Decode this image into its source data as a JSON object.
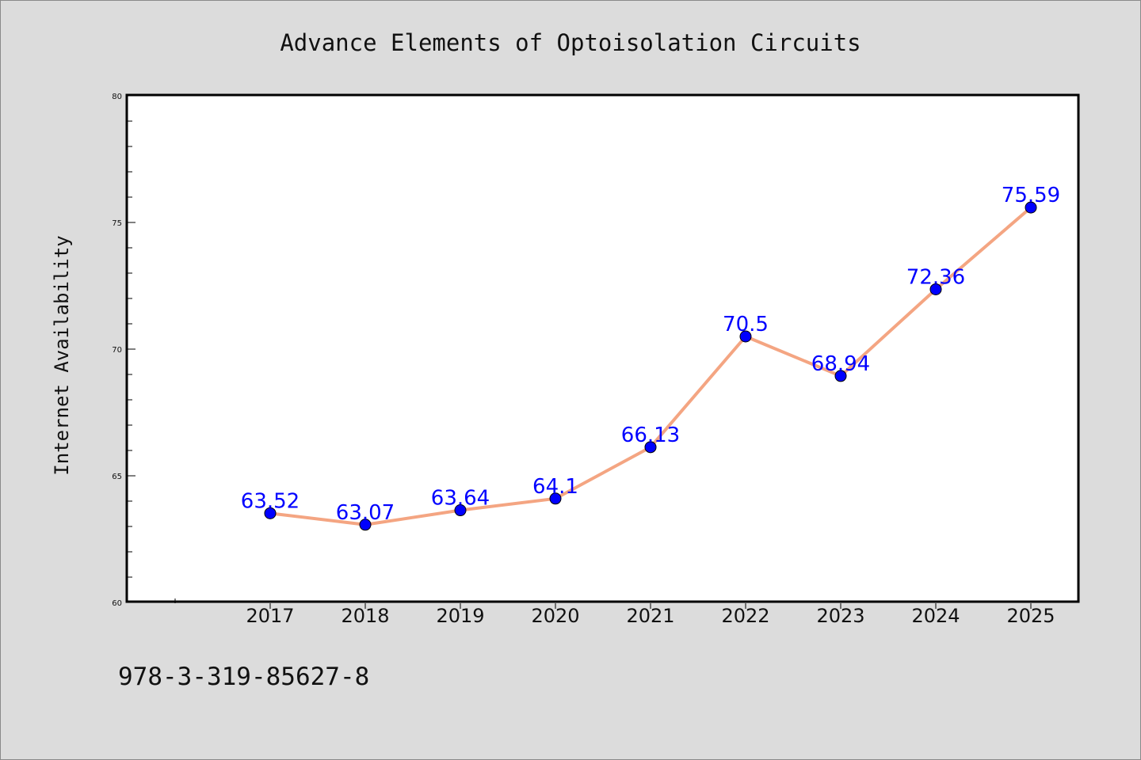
{
  "chart_data": {
    "type": "line",
    "title": "Advance Elements of Optoisolation Circuits",
    "xlabel": "",
    "ylabel": "Internet Availability",
    "categories": [
      "2017",
      "2018",
      "2019",
      "2020",
      "2021",
      "2022",
      "2023",
      "2024",
      "2025"
    ],
    "series": [
      {
        "values": [
          63.52,
          63.07,
          63.64,
          64.1,
          66.13,
          70.5,
          68.94,
          72.36,
          75.59
        ],
        "data_labels": [
          "63.52",
          "63.07",
          "63.64",
          "64.1",
          "66.13",
          "70.5",
          "68.94",
          "72.36",
          "75.59"
        ]
      }
    ],
    "ylim": [
      60,
      80
    ],
    "y_ticks": [
      "60",
      "65",
      "70",
      "75",
      "80"
    ],
    "grid": false,
    "legend": "none",
    "colors": {
      "line": "#f4a582",
      "marker": "#0000ff",
      "data_label": "#0000ff",
      "plot_background": "#ffffff",
      "figure_background": "#dcdcdc"
    }
  },
  "footer": {
    "isbn": "978-3-319-85627-8"
  }
}
